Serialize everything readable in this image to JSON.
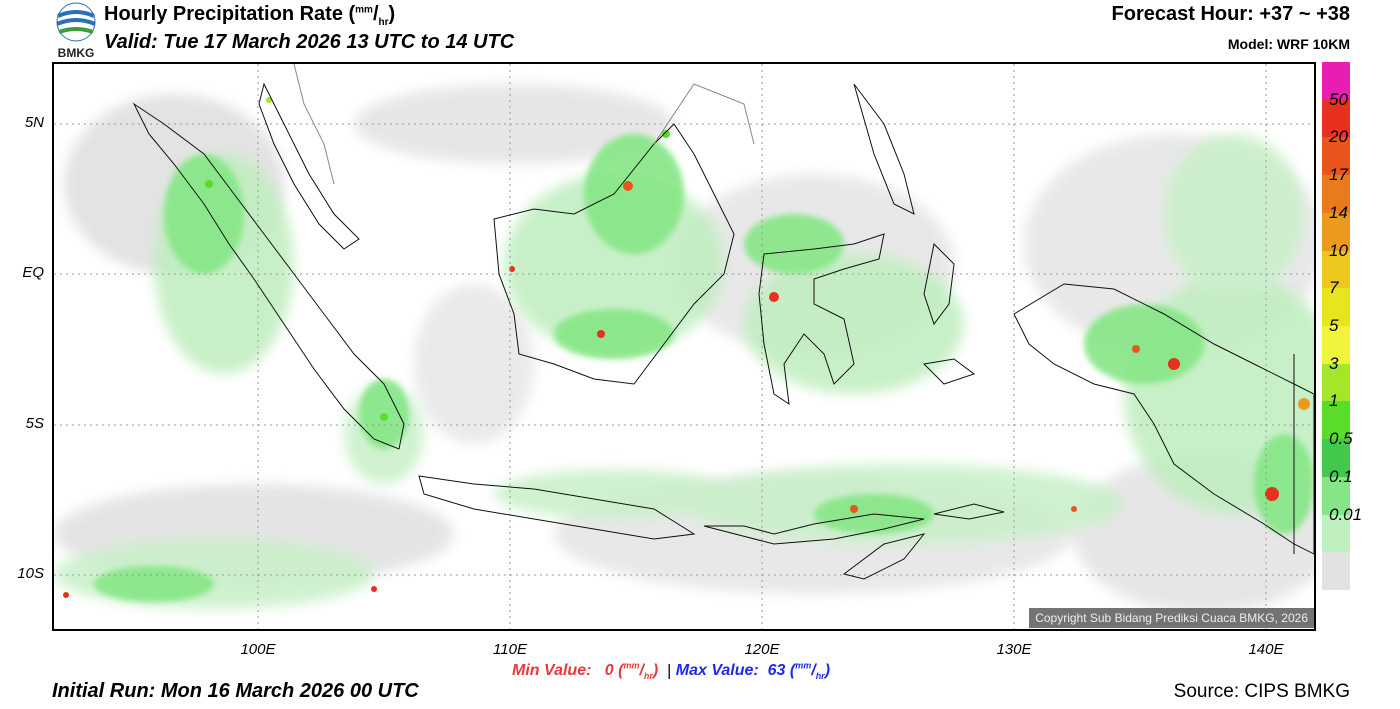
{
  "header": {
    "title": "Hourly Precipitation Rate (",
    "title_unit_num": "mm",
    "title_unit_den": "hr",
    "title_close": ")",
    "valid": "Valid: Tue 17 March 2026 13 UTC to 14 UTC",
    "forecast_hour": "Forecast Hour: +37 ~ +38",
    "model": "Model: WRF 10KM",
    "logo_text": "BMKG"
  },
  "axes": {
    "lat_labels": [
      "5N",
      "EQ",
      "5S",
      "10S"
    ],
    "lon_labels": [
      "100E",
      "110E",
      "120E",
      "130E",
      "140E"
    ]
  },
  "stats": {
    "min_label": "Min Value:",
    "min_value": "0",
    "max_label": "Max Value:",
    "max_value": "63",
    "separator": "|",
    "unit_num": "mm",
    "unit_den": "hr"
  },
  "footer": {
    "initial_run": "Initial Run: Mon 16 March 2026 00 UTC",
    "source": "Source: CIPS BMKG",
    "copyright": "Copyright Sub Bidang Prediksi Cuaca BMKG, 2026"
  },
  "colorbar": {
    "labels": [
      "50",
      "20",
      "17",
      "14",
      "10",
      "7",
      "5",
      "3",
      "1",
      "0.5",
      "0.1",
      "0.01"
    ],
    "colors": [
      "#e81eb4",
      "#e8301e",
      "#e8561e",
      "#ea7a1e",
      "#ec9a1e",
      "#ecc81e",
      "#e8e41e",
      "#f0f43a",
      "#a6e62a",
      "#5adc2a",
      "#42c84a",
      "#86e686",
      "#bfeebf",
      "#e2e2e2"
    ]
  }
}
